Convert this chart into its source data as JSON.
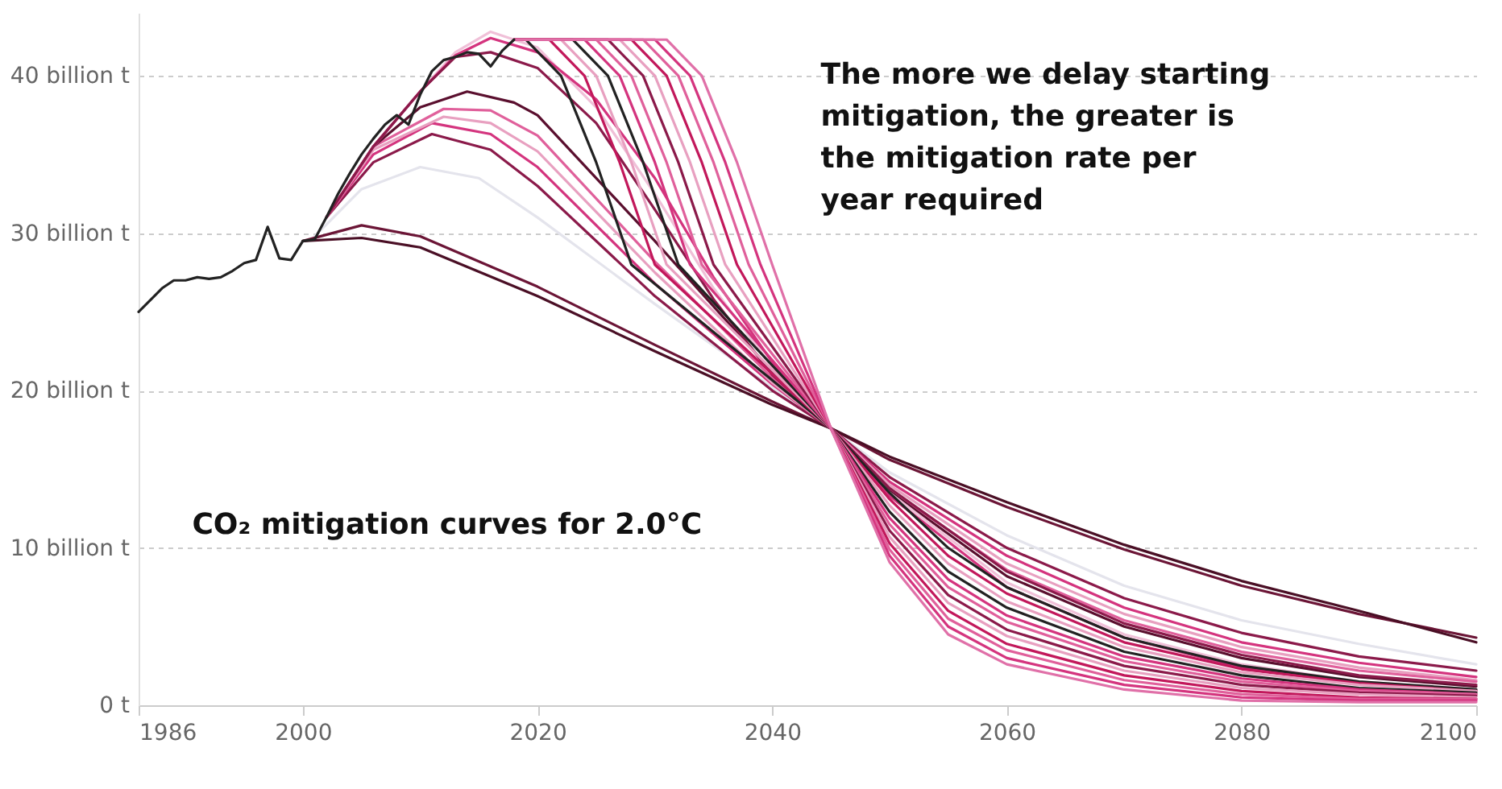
{
  "chart_data": {
    "type": "line",
    "xlim": [
      1986,
      2100
    ],
    "xticks": [
      1986,
      2000,
      2020,
      2040,
      2060,
      2080,
      2100
    ],
    "ylim": [
      0,
      44
    ],
    "yticks": [
      {
        "value": 0,
        "label": "0 t"
      },
      {
        "value": 10,
        "label": "10 billion t"
      },
      {
        "value": 20,
        "label": "20 billion t"
      },
      {
        "value": 30,
        "label": "30 billion t"
      },
      {
        "value": 40,
        "label": "40 billion t"
      }
    ],
    "grid": "y",
    "legend": false,
    "line_style": "solid",
    "marker": "none",
    "annotations": [
      "The more we delay starting mitigation, the greater is the mitigation rate per year required",
      "CO₂ mitigation curves for 2.0°C"
    ],
    "series": [
      {
        "color": "#e4e4ec",
        "x": [
          2001,
          2005,
          2010,
          2015,
          2020,
          2030,
          2040,
          2045,
          2050,
          2060,
          2070,
          2080,
          2090,
          2100
        ],
        "values": [
          29.8,
          32.8,
          34.2,
          33.5,
          31,
          25.5,
          20.2,
          17.6,
          14.8,
          10.8,
          7.6,
          5.4,
          3.9,
          2.6
        ]
      },
      {
        "color": "#6b1536",
        "x": [
          2000,
          2005,
          2010,
          2020,
          2030,
          2040,
          2045,
          2050,
          2060,
          2070,
          2080,
          2090,
          2100
        ],
        "values": [
          29.5,
          30.5,
          29.8,
          26.6,
          22.9,
          19.3,
          17.6,
          15.6,
          12.6,
          9.9,
          7.6,
          5.8,
          4.3
        ]
      },
      {
        "color": "#4a0f25",
        "x": [
          2000,
          2005,
          2010,
          2020,
          2030,
          2040,
          2045,
          2050,
          2060,
          2070,
          2080,
          2090,
          2100
        ],
        "values": [
          29.5,
          29.7,
          29.1,
          26.0,
          22.5,
          19.1,
          17.6,
          15.8,
          12.9,
          10.2,
          7.9,
          6.0,
          4.0
        ]
      },
      {
        "color": "#8b1a4a",
        "x": [
          2002,
          2006,
          2011,
          2016,
          2020,
          2030,
          2040,
          2045,
          2050,
          2060,
          2070,
          2080,
          2090,
          2100
        ],
        "values": [
          31,
          34.5,
          36.3,
          35.3,
          33,
          26,
          20,
          17.6,
          14.5,
          10,
          6.8,
          4.6,
          3.1,
          2.2
        ]
      },
      {
        "color": "#d4347e",
        "x": [
          2002,
          2006,
          2011,
          2016,
          2020,
          2030,
          2040,
          2045,
          2050,
          2060,
          2070,
          2080,
          2090,
          2100
        ],
        "values": [
          31,
          35,
          37,
          36.3,
          34.2,
          26.8,
          20.4,
          17.6,
          14.2,
          9.5,
          6.2,
          4.0,
          2.7,
          1.8
        ]
      },
      {
        "color": "#e8a0c0",
        "x": [
          2002,
          2006,
          2012,
          2016,
          2020,
          2030,
          2040,
          2045,
          2050,
          2060,
          2070,
          2080,
          2090,
          2100
        ],
        "values": [
          31,
          35.3,
          37.4,
          37,
          35.2,
          27.5,
          20.5,
          17.6,
          14,
          9,
          5.8,
          3.7,
          2.4,
          1.6
        ]
      },
      {
        "color": "#e0609b",
        "x": [
          2002,
          2006,
          2012,
          2016,
          2020,
          2030,
          2040,
          2045,
          2050,
          2060,
          2070,
          2080,
          2090,
          2100
        ],
        "values": [
          31,
          35.5,
          37.9,
          37.8,
          36.2,
          28.2,
          20.8,
          17.6,
          13.7,
          8.6,
          5.4,
          3.4,
          2.2,
          1.5
        ]
      },
      {
        "color": "#5a0f2e",
        "x": [
          2002,
          2006,
          2010,
          2014,
          2018,
          2020,
          2030,
          2040,
          2045,
          2050,
          2060,
          2070,
          2080,
          2090,
          2100
        ],
        "values": [
          31,
          35.5,
          38,
          39,
          38.3,
          37.5,
          29.5,
          21.2,
          17.6,
          13.6,
          8.2,
          5,
          3,
          1.8,
          1.2
        ]
      },
      {
        "color": "#f0c0d8",
        "x": [
          2002,
          2006,
          2010,
          2013,
          2016,
          2020,
          2025,
          2030,
          2035,
          2040,
          2045,
          2050,
          2060,
          2070,
          2080,
          2090,
          2100
        ],
        "values": [
          31,
          35.5,
          39,
          41.5,
          42.8,
          41.8,
          38,
          32.5,
          26.5,
          21.5,
          17.6,
          13.5,
          7.8,
          4.5,
          2.6,
          1.5,
          1.0
        ]
      },
      {
        "color": "#d4347e",
        "x": [
          2002,
          2006,
          2010,
          2013,
          2016,
          2020,
          2025,
          2030,
          2035,
          2040,
          2045,
          2050,
          2060,
          2070,
          2080,
          2090,
          2100
        ],
        "values": [
          31,
          35.5,
          39,
          41.3,
          42.4,
          41.5,
          38.5,
          33.5,
          27.2,
          21.8,
          17.6,
          13.3,
          7.5,
          4.3,
          2.4,
          1.4,
          0.9
        ]
      },
      {
        "color": "#8b1a4a",
        "x": [
          2002,
          2006,
          2010,
          2013,
          2016,
          2020,
          2025,
          2030,
          2035,
          2040,
          2045,
          2050,
          2060,
          2070,
          2080,
          2090,
          2100
        ],
        "values": [
          31,
          35.5,
          39,
          41.2,
          41.5,
          40.5,
          37,
          31.5,
          25.8,
          21,
          17.6,
          13.8,
          8.5,
          5.2,
          3.2,
          1.9,
          1.3
        ]
      },
      {
        "color": "#222222",
        "x": [
          2018,
          2019,
          2022,
          2025,
          2028,
          2045,
          2050,
          2055,
          2060,
          2070,
          2080,
          2090,
          2100
        ],
        "values": [
          42.3,
          42.3,
          40,
          34.5,
          28,
          17.6,
          13.5,
          10,
          7.5,
          4.3,
          2.5,
          1.5,
          1.0
        ]
      },
      {
        "color": "#c2185b",
        "x": [
          2018,
          2021,
          2024,
          2027,
          2030,
          2045,
          2050,
          2055,
          2060,
          2070,
          2080,
          2090,
          2100
        ],
        "values": [
          42.3,
          42.3,
          40,
          34.5,
          28,
          17.6,
          13.1,
          9.5,
          7.1,
          4.0,
          2.3,
          1.4,
          0.9
        ]
      },
      {
        "color": "#e8a0c0",
        "x": [
          2018,
          2022,
          2025,
          2028,
          2031,
          2045,
          2050,
          2055,
          2060,
          2070,
          2080,
          2090,
          2100
        ],
        "values": [
          42.3,
          42.3,
          40,
          34.5,
          28,
          17.6,
          12.7,
          9.0,
          6.6,
          3.7,
          2.1,
          1.3,
          0.9
        ]
      },
      {
        "color": "#222222",
        "x": [
          2018,
          2023,
          2026,
          2029,
          2032,
          2045,
          2050,
          2055,
          2060,
          2070,
          2080,
          2090,
          2100
        ],
        "values": [
          42.3,
          42.3,
          40,
          34.5,
          28,
          17.6,
          12.3,
          8.5,
          6.2,
          3.4,
          1.9,
          1.1,
          0.8
        ]
      },
      {
        "color": "#d4347e",
        "x": [
          2018,
          2024,
          2027,
          2030,
          2033,
          2045,
          2050,
          2055,
          2060,
          2070,
          2080,
          2090,
          2100
        ],
        "values": [
          42.3,
          42.3,
          40,
          34.5,
          28,
          17.6,
          11.9,
          8.0,
          5.7,
          3.1,
          1.7,
          1.0,
          0.7
        ]
      },
      {
        "color": "#e0609b",
        "x": [
          2018,
          2025,
          2028,
          2031,
          2034,
          2045,
          2050,
          2055,
          2060,
          2070,
          2080,
          2090,
          2100
        ],
        "values": [
          42.3,
          42.3,
          40,
          34.5,
          28,
          17.6,
          11.5,
          7.5,
          5.3,
          2.8,
          1.5,
          0.9,
          0.7
        ]
      },
      {
        "color": "#8b1a4a",
        "x": [
          2018,
          2026,
          2029,
          2032,
          2035,
          2045,
          2050,
          2055,
          2060,
          2070,
          2080,
          2090,
          2100
        ],
        "values": [
          42.3,
          42.3,
          40,
          34.5,
          28,
          17.6,
          11.1,
          7.0,
          4.8,
          2.5,
          1.3,
          0.8,
          0.6
        ]
      },
      {
        "color": "#e8a0c0",
        "x": [
          2018,
          2027,
          2030,
          2033,
          2036,
          2045,
          2050,
          2055,
          2060,
          2070,
          2080,
          2090,
          2100
        ],
        "values": [
          42.3,
          42.3,
          40,
          34.5,
          28,
          17.6,
          10.7,
          6.5,
          4.4,
          2.2,
          1.1,
          0.7,
          0.5
        ]
      },
      {
        "color": "#c2185b",
        "x": [
          2018,
          2028,
          2031,
          2034,
          2037,
          2045,
          2050,
          2055,
          2060,
          2070,
          2080,
          2090,
          2100
        ],
        "values": [
          42.3,
          42.3,
          40,
          34.5,
          28,
          17.6,
          10.3,
          6.0,
          3.9,
          1.9,
          0.9,
          0.5,
          0.4
        ]
      },
      {
        "color": "#e0609b",
        "x": [
          2018,
          2029,
          2032,
          2035,
          2038,
          2045,
          2050,
          2055,
          2060,
          2070,
          2080,
          2090,
          2100
        ],
        "values": [
          42.3,
          42.3,
          40,
          34.5,
          28,
          17.6,
          9.9,
          5.5,
          3.5,
          1.6,
          0.7,
          0.4,
          0.4
        ]
      },
      {
        "color": "#d4347e",
        "x": [
          2018,
          2030,
          2033,
          2036,
          2039,
          2045,
          2050,
          2055,
          2060,
          2070,
          2080,
          2090,
          2100
        ],
        "values": [
          42.3,
          42.3,
          40,
          34.5,
          28,
          17.6,
          9.5,
          5.0,
          3.0,
          1.3,
          0.5,
          0.3,
          0.3
        ]
      },
      {
        "color": "#e070a8",
        "x": [
          2018,
          2031,
          2034,
          2037,
          2040,
          2045,
          2050,
          2055,
          2060,
          2070,
          2080,
          2090,
          2100
        ],
        "values": [
          42.3,
          42.3,
          40,
          34.5,
          28,
          17.6,
          9.1,
          4.5,
          2.6,
          1.0,
          0.3,
          0.2,
          0.2
        ]
      },
      {
        "color": "#222222",
        "x": [
          1986,
          1988,
          1989,
          1990,
          1991,
          1992,
          1993,
          1994,
          1995,
          1996,
          1997,
          1998,
          1999,
          2000,
          2001,
          2002,
          2003,
          2004,
          2005,
          2006,
          2007,
          2008,
          2009,
          2010,
          2011,
          2012,
          2013,
          2014,
          2015,
          2016,
          2017,
          2018
        ],
        "values": [
          25,
          26.5,
          27,
          27,
          27.2,
          27.1,
          27.2,
          27.6,
          28.1,
          28.3,
          30.4,
          28.4,
          28.3,
          29.5,
          29.6,
          31,
          32.5,
          33.8,
          35,
          36,
          36.9,
          37.5,
          36.9,
          38.8,
          40.3,
          41,
          41.2,
          41.5,
          41.4,
          40.6,
          41.6,
          42.3
        ]
      }
    ]
  }
}
